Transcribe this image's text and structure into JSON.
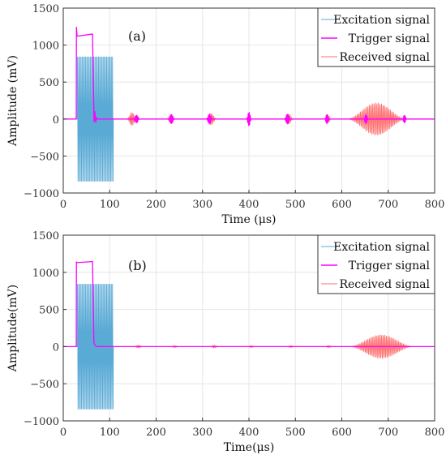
{
  "colors": {
    "excitation": "#5aaad6",
    "trigger": "#ff00ff",
    "received": "#ff7070",
    "grid": "#e6e6e6",
    "axis": "#333333"
  },
  "chart_data": [
    {
      "type": "line",
      "panel_label": "(a)",
      "xlabel": "Time (μs)",
      "ylabel": "Amplitude (mV)",
      "xlim": [
        0,
        800
      ],
      "ylim": [
        -1000,
        1500
      ],
      "xticks": [
        0,
        100,
        200,
        300,
        400,
        500,
        600,
        700,
        800
      ],
      "yticks": [
        -1000,
        -500,
        0,
        500,
        1000,
        1500
      ],
      "grid": true,
      "legend_position": "top-right",
      "series": [
        {
          "name": "Excitation signal",
          "color_key": "excitation",
          "kind": "burst",
          "start": 30,
          "end": 108,
          "amplitude": 840,
          "cycles": 31
        },
        {
          "name": "Trigger signal",
          "color_key": "trigger",
          "kind": "pulse",
          "rise": 28,
          "fall": 64,
          "peak": 1240,
          "level_start": 1120,
          "level_end": 1150,
          "ringing": [
            {
              "center": 63,
              "width": 20,
              "amplitude": 110,
              "cycles": 5
            },
            {
              "center": 158,
              "width": 10,
              "amplitude": 55,
              "cycles": 4
            },
            {
              "center": 233,
              "width": 10,
              "amplitude": 65,
              "cycles": 4
            },
            {
              "center": 315,
              "width": 10,
              "amplitude": 70,
              "cycles": 4
            },
            {
              "center": 400,
              "width": 8,
              "amplitude": 90,
              "cycles": 4
            },
            {
              "center": 483,
              "width": 10,
              "amplitude": 70,
              "cycles": 4
            },
            {
              "center": 568,
              "width": 8,
              "amplitude": 60,
              "cycles": 4
            },
            {
              "center": 652,
              "width": 8,
              "amplitude": 60,
              "cycles": 4
            },
            {
              "center": 735,
              "width": 8,
              "amplitude": 50,
              "cycles": 4
            }
          ]
        },
        {
          "name": "Received signal",
          "color_key": "received",
          "kind": "packets",
          "packets": [
            {
              "center": 65,
              "width": 15,
              "amplitude": 60,
              "cycles": 5
            },
            {
              "center": 148,
              "width": 22,
              "amplitude": 90,
              "cycles": 8
            },
            {
              "center": 232,
              "width": 18,
              "amplitude": 65,
              "cycles": 7
            },
            {
              "center": 318,
              "width": 24,
              "amplitude": 80,
              "cycles": 9
            },
            {
              "center": 400,
              "width": 14,
              "amplitude": 60,
              "cycles": 6
            },
            {
              "center": 485,
              "width": 22,
              "amplitude": 70,
              "cycles": 8
            },
            {
              "center": 570,
              "width": 14,
              "amplitude": 60,
              "cycles": 6
            },
            {
              "center": 675,
              "width": 130,
              "amplitude": 220,
              "cycles": 40
            }
          ]
        }
      ]
    },
    {
      "type": "line",
      "panel_label": "(b)",
      "xlabel": "Time(μs)",
      "ylabel": "Amplitude(mV)",
      "xlim": [
        0,
        800
      ],
      "ylim": [
        -1000,
        1500
      ],
      "xticks": [
        0,
        100,
        200,
        300,
        400,
        500,
        600,
        700,
        800
      ],
      "yticks": [
        -1000,
        -500,
        0,
        500,
        1000,
        1500
      ],
      "grid": true,
      "legend_position": "top-right",
      "series": [
        {
          "name": "Excitation signal",
          "color_key": "excitation",
          "kind": "burst",
          "start": 30,
          "end": 108,
          "amplitude": 840,
          "cycles": 31
        },
        {
          "name": "Trigger signal",
          "color_key": "trigger",
          "kind": "pulse",
          "rise": 28,
          "fall": 64,
          "peak": 1140,
          "level_start": 1130,
          "level_end": 1145,
          "ringing": []
        },
        {
          "name": "Received signal",
          "color_key": "received",
          "kind": "packets",
          "packets": [
            {
              "center": 162,
              "width": 18,
              "amplitude": 20,
              "cycles": 6
            },
            {
              "center": 240,
              "width": 16,
              "amplitude": 15,
              "cycles": 5
            },
            {
              "center": 325,
              "width": 18,
              "amplitude": 20,
              "cycles": 6
            },
            {
              "center": 405,
              "width": 16,
              "amplitude": 15,
              "cycles": 5
            },
            {
              "center": 490,
              "width": 16,
              "amplitude": 15,
              "cycles": 5
            },
            {
              "center": 572,
              "width": 16,
              "amplitude": 15,
              "cycles": 5
            },
            {
              "center": 685,
              "width": 140,
              "amplitude": 160,
              "cycles": 42
            }
          ]
        }
      ]
    }
  ]
}
